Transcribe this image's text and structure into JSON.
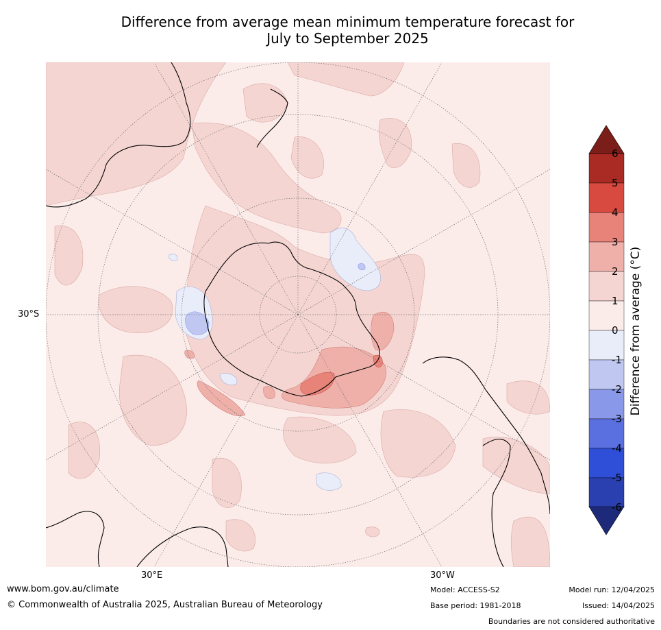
{
  "title": {
    "line1": "Difference from average mean minimum temperature forecast for",
    "line2": "July to September 2025"
  },
  "map": {
    "projection": "south-polar stereographic",
    "grid_labels": {
      "lat": "30°S",
      "lon_east": "30°E",
      "lon_west": "30°W"
    },
    "features": [
      "Australia",
      "New Zealand",
      "Antarctica",
      "South America",
      "Southern Africa"
    ]
  },
  "colorbar": {
    "title": "Difference from average ($^\\circ$C)",
    "title_display": "Difference from average (°C)",
    "ticks": [
      "6",
      "5",
      "4",
      "3",
      "2",
      "1",
      "0",
      "-1",
      "-2",
      "-3",
      "-4",
      "-5",
      "-6"
    ],
    "bins": [
      {
        "range": ">6",
        "color": "#7b1e1a"
      },
      {
        "range": "5 to 6",
        "color": "#a92b24"
      },
      {
        "range": "4 to 5",
        "color": "#d84a3f"
      },
      {
        "range": "3 to 4",
        "color": "#e8837a"
      },
      {
        "range": "2 to 3",
        "color": "#efb0aa"
      },
      {
        "range": "1 to 2",
        "color": "#f4d5d2"
      },
      {
        "range": "0 to 1",
        "color": "#fbecea"
      },
      {
        "range": "-1 to 0",
        "color": "#e9edfa"
      },
      {
        "range": "-2 to -1",
        "color": "#c0c8f2"
      },
      {
        "range": "-3 to -2",
        "color": "#8a98ea"
      },
      {
        "range": "-4 to -3",
        "color": "#5a6fe0"
      },
      {
        "range": "-5 to -4",
        "color": "#2f4fd8"
      },
      {
        "range": "-6 to -5",
        "color": "#2a3fb0"
      },
      {
        "range": "<-6",
        "color": "#1d2a7a"
      }
    ]
  },
  "footer": {
    "url": "www.bom.gov.au/climate",
    "copyright": "© Commonwealth of Australia 2025, Australian Bureau of Meteorology",
    "model": "Model: ACCESS-S2",
    "base_period": "Base period: 1981-2018",
    "model_run": "Model run: 12/04/2025",
    "issued": "Issued: 14/04/2025",
    "disclaimer": "Boundaries are not considered authoritative"
  }
}
